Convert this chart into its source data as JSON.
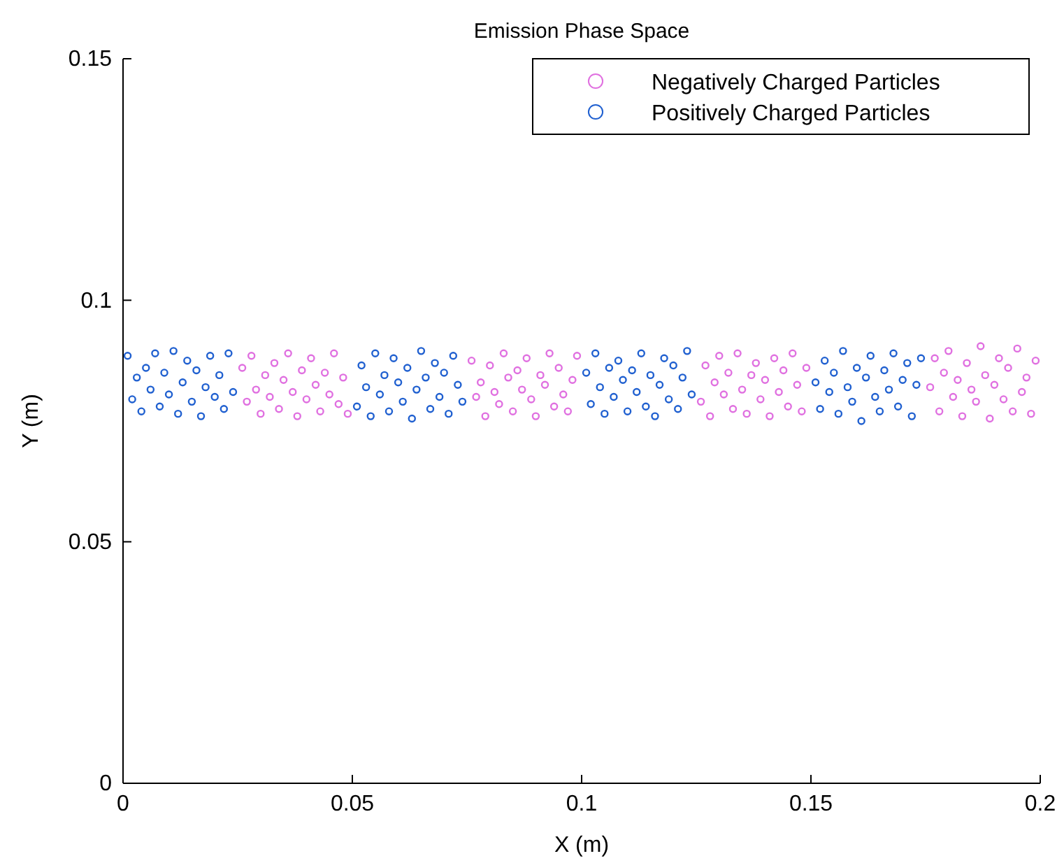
{
  "chart_data": {
    "type": "scatter",
    "title": "Emission Phase Space",
    "xlabel": "X (m)",
    "ylabel": "Y (m)",
    "xlim": [
      0,
      0.2
    ],
    "ylim": [
      0,
      0.15
    ],
    "xticks": [
      0,
      0.05,
      0.1,
      0.15,
      0.2
    ],
    "yticks": [
      0,
      0.05,
      0.1,
      0.15
    ],
    "marker": "circle",
    "legend": "top right",
    "grid": false,
    "series": [
      {
        "name": "Negatively Charged Particles",
        "color": "#e070e0",
        "x": [
          0.026,
          0.027,
          0.028,
          0.029,
          0.03,
          0.031,
          0.032,
          0.033,
          0.034,
          0.035,
          0.036,
          0.037,
          0.038,
          0.039,
          0.04,
          0.041,
          0.042,
          0.043,
          0.044,
          0.045,
          0.046,
          0.047,
          0.048,
          0.049,
          0.076,
          0.077,
          0.078,
          0.079,
          0.08,
          0.081,
          0.082,
          0.083,
          0.084,
          0.085,
          0.086,
          0.087,
          0.088,
          0.089,
          0.09,
          0.091,
          0.092,
          0.093,
          0.094,
          0.095,
          0.096,
          0.097,
          0.098,
          0.099,
          0.126,
          0.127,
          0.128,
          0.129,
          0.13,
          0.131,
          0.132,
          0.133,
          0.134,
          0.135,
          0.136,
          0.137,
          0.138,
          0.139,
          0.14,
          0.141,
          0.142,
          0.143,
          0.144,
          0.145,
          0.146,
          0.147,
          0.148,
          0.149,
          0.176,
          0.177,
          0.178,
          0.179,
          0.18,
          0.181,
          0.182,
          0.183,
          0.184,
          0.185,
          0.186,
          0.187,
          0.188,
          0.189,
          0.19,
          0.191,
          0.192,
          0.193,
          0.194,
          0.195,
          0.196,
          0.197,
          0.198,
          0.199
        ],
        "values": [
          0.086,
          0.079,
          0.0885,
          0.0815,
          0.0765,
          0.0845,
          0.08,
          0.087,
          0.0775,
          0.0835,
          0.089,
          0.081,
          0.076,
          0.0855,
          0.0795,
          0.088,
          0.0825,
          0.077,
          0.085,
          0.0805,
          0.089,
          0.0785,
          0.084,
          0.0765,
          0.0875,
          0.08,
          0.083,
          0.076,
          0.0865,
          0.081,
          0.0785,
          0.089,
          0.084,
          0.077,
          0.0855,
          0.0815,
          0.088,
          0.0795,
          0.076,
          0.0845,
          0.0825,
          0.089,
          0.078,
          0.086,
          0.0805,
          0.077,
          0.0835,
          0.0885,
          0.079,
          0.0865,
          0.076,
          0.083,
          0.0885,
          0.0805,
          0.085,
          0.0775,
          0.089,
          0.0815,
          0.0765,
          0.0845,
          0.087,
          0.0795,
          0.0835,
          0.076,
          0.088,
          0.081,
          0.0855,
          0.078,
          0.089,
          0.0825,
          0.077,
          0.086,
          0.082,
          0.088,
          0.077,
          0.085,
          0.0895,
          0.08,
          0.0835,
          0.076,
          0.087,
          0.0815,
          0.079,
          0.0905,
          0.0845,
          0.0755,
          0.0825,
          0.088,
          0.0795,
          0.086,
          0.077,
          0.09,
          0.081,
          0.084,
          0.0765,
          0.0875
        ]
      },
      {
        "name": "Positively Charged Particles",
        "color": "#2060d0",
        "x": [
          0.001,
          0.002,
          0.003,
          0.004,
          0.005,
          0.006,
          0.007,
          0.008,
          0.009,
          0.01,
          0.011,
          0.012,
          0.013,
          0.014,
          0.015,
          0.016,
          0.017,
          0.018,
          0.019,
          0.02,
          0.021,
          0.022,
          0.023,
          0.024,
          0.051,
          0.052,
          0.053,
          0.054,
          0.055,
          0.056,
          0.057,
          0.058,
          0.059,
          0.06,
          0.061,
          0.062,
          0.063,
          0.064,
          0.065,
          0.066,
          0.067,
          0.068,
          0.069,
          0.07,
          0.071,
          0.072,
          0.073,
          0.074,
          0.101,
          0.102,
          0.103,
          0.104,
          0.105,
          0.106,
          0.107,
          0.108,
          0.109,
          0.11,
          0.111,
          0.112,
          0.113,
          0.114,
          0.115,
          0.116,
          0.117,
          0.118,
          0.119,
          0.12,
          0.121,
          0.122,
          0.123,
          0.124,
          0.151,
          0.152,
          0.153,
          0.154,
          0.155,
          0.156,
          0.157,
          0.158,
          0.159,
          0.16,
          0.161,
          0.162,
          0.163,
          0.164,
          0.165,
          0.166,
          0.167,
          0.168,
          0.169,
          0.17,
          0.171,
          0.172,
          0.173,
          0.174
        ],
        "values": [
          0.0885,
          0.0795,
          0.084,
          0.077,
          0.086,
          0.0815,
          0.089,
          0.078,
          0.085,
          0.0805,
          0.0895,
          0.0765,
          0.083,
          0.0875,
          0.079,
          0.0855,
          0.076,
          0.082,
          0.0885,
          0.08,
          0.0845,
          0.0775,
          0.089,
          0.081,
          0.078,
          0.0865,
          0.082,
          0.076,
          0.089,
          0.0805,
          0.0845,
          0.077,
          0.088,
          0.083,
          0.079,
          0.086,
          0.0755,
          0.0815,
          0.0895,
          0.084,
          0.0775,
          0.087,
          0.08,
          0.085,
          0.0765,
          0.0885,
          0.0825,
          0.079,
          0.085,
          0.0785,
          0.089,
          0.082,
          0.0765,
          0.086,
          0.08,
          0.0875,
          0.0835,
          0.077,
          0.0855,
          0.081,
          0.089,
          0.078,
          0.0845,
          0.076,
          0.0825,
          0.088,
          0.0795,
          0.0865,
          0.0775,
          0.084,
          0.0895,
          0.0805,
          0.083,
          0.0775,
          0.0875,
          0.081,
          0.085,
          0.0765,
          0.0895,
          0.082,
          0.079,
          0.086,
          0.075,
          0.084,
          0.0885,
          0.08,
          0.077,
          0.0855,
          0.0815,
          0.089,
          0.078,
          0.0835,
          0.087,
          0.076,
          0.0825,
          0.088
        ]
      }
    ]
  }
}
